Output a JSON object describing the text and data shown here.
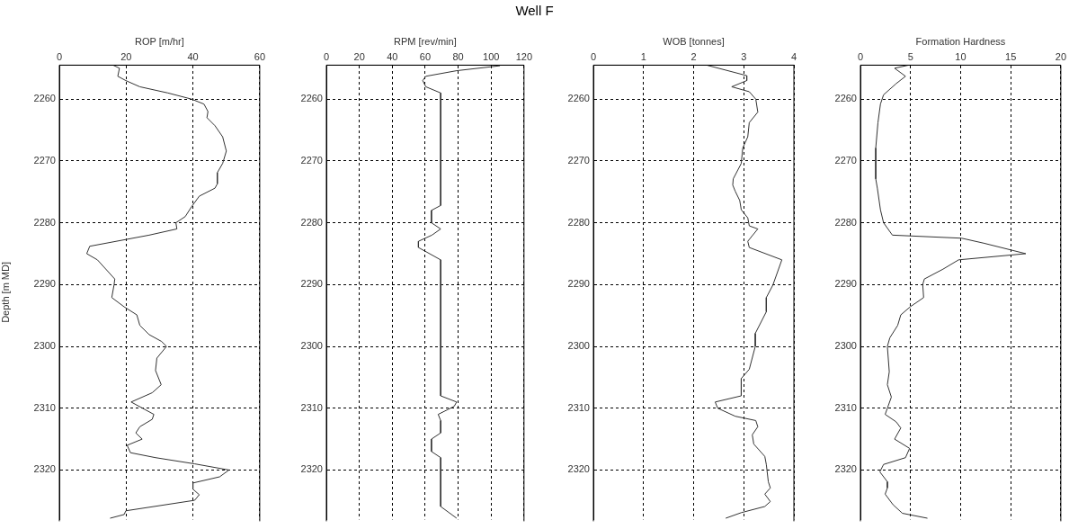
{
  "chart_data": [
    {
      "type": "line",
      "xlabel": "ROP [m/hr]",
      "ylabel": "Depth [m MD]",
      "xlim": [
        0,
        60
      ],
      "xticks": [
        0,
        20,
        40,
        60
      ],
      "ylim": [
        2328,
        2254.5
      ],
      "yticks": [
        2260,
        2270,
        2280,
        2290,
        2300,
        2310,
        2320
      ],
      "grid": true,
      "series": [
        {
          "color": "#333333",
          "x": [
            16.1,
            18,
            17.5,
            19.9,
            24.1,
            32.5,
            39.6,
            43.3,
            44.5,
            44.2,
            46.6,
            48.9,
            50,
            48.9,
            47.3,
            47.3,
            46.6,
            41.9,
            39.6,
            37.7,
            34.9,
            35.2,
            26.9,
            9.1,
            8.2,
            11.4,
            16.6,
            16.4,
            15.7,
            19.4,
            23.2,
            24.1,
            26.9,
            30.6,
            32.1,
            29.2,
            28.8,
            30.5,
            27.8,
            21.5,
            28.3,
            27.8,
            24.1,
            22.9,
            24.8,
            20.3,
            21.3,
            28.8,
            40.5,
            50.8,
            48,
            40,
            40,
            41.9,
            40.5,
            19.9,
            19.4,
            15.2
          ],
          "values": [
            2254.5,
            2255,
            2256.3,
            2257,
            2258,
            2259,
            2260,
            2260.8,
            2262,
            2263,
            2264.3,
            2266.1,
            2268.4,
            2270.4,
            2271.9,
            2273.7,
            2274.4,
            2275.7,
            2277.4,
            2279,
            2280,
            2281,
            2282,
            2283.8,
            2285,
            2286,
            2289.1,
            2290,
            2292.1,
            2293.6,
            2294.9,
            2296.6,
            2298.1,
            2299.2,
            2300,
            2301.9,
            2303.9,
            2306.2,
            2307.5,
            2309,
            2311,
            2311.8,
            2313,
            2314,
            2315,
            2316,
            2317.2,
            2318,
            2319,
            2320,
            2321.1,
            2322.1,
            2323.1,
            2324,
            2324.9,
            2326.6,
            2327.2,
            2327.8
          ]
        }
      ]
    },
    {
      "type": "line",
      "title": "Well F",
      "xlabel": "RPM [rev/min]",
      "xlim": [
        0,
        120
      ],
      "xticks": [
        0,
        20,
        40,
        60,
        80,
        100,
        120
      ],
      "ylim": [
        2328,
        2254.5
      ],
      "yticks": [
        2260,
        2270,
        2280,
        2290,
        2300,
        2310,
        2320
      ],
      "grid": true,
      "series": [
        {
          "color": "#333333",
          "x": [
            105.4,
            79.1,
            60.4,
            58.5,
            60.4,
            69.4,
            69.4,
            63.8,
            63.8,
            69.4,
            64.1,
            55.9,
            55.9,
            69.4,
            69.4,
            79.1,
            77.6,
            67.9,
            69.4,
            69.4,
            63.8,
            63.8,
            69.4,
            69.4,
            79.1
          ],
          "values": [
            2254.6,
            2255.4,
            2256.3,
            2257,
            2258,
            2259,
            2277.2,
            2278,
            2280,
            2281,
            2282,
            2283,
            2284,
            2286,
            2308,
            2309,
            2309.7,
            2311,
            2312,
            2314,
            2315,
            2317,
            2318,
            2325.9,
            2327.8
          ]
        }
      ]
    },
    {
      "type": "line",
      "xlabel": "WOB [tonnes]",
      "xlim": [
        0,
        4
      ],
      "xticks": [
        0,
        1,
        2,
        3,
        4
      ],
      "ylim": [
        2328,
        2254.5
      ],
      "yticks": [
        2260,
        2270,
        2280,
        2290,
        2300,
        2310,
        2320
      ],
      "grid": true,
      "series": [
        {
          "color": "#333333",
          "x": [
            2.26,
            3.06,
            3.06,
            2.76,
            3.11,
            3.24,
            3.28,
            3.11,
            3.08,
            2.98,
            2.95,
            2.79,
            2.78,
            2.83,
            2.92,
            2.95,
            3.08,
            3.11,
            3.28,
            3.08,
            3.11,
            3.76,
            3.58,
            3.45,
            3.45,
            3.23,
            3.23,
            3.11,
            2.95,
            2.95,
            2.43,
            2.48,
            2.83,
            3.24,
            3.28,
            3.17,
            3.2,
            3.42,
            3.45,
            3.49,
            3.53,
            3.42,
            3.53,
            3.42,
            2.95,
            2.64
          ],
          "values": [
            2254.5,
            2256.2,
            2257,
            2258,
            2258.8,
            2260,
            2262.1,
            2263.8,
            2266.1,
            2267.9,
            2270.4,
            2272.9,
            2273.9,
            2274.9,
            2276.4,
            2277.9,
            2279.2,
            2280.5,
            2281,
            2283,
            2284,
            2286,
            2290.1,
            2292.1,
            2294.4,
            2297.9,
            2300,
            2303.7,
            2305.2,
            2308,
            2309,
            2310,
            2311.3,
            2312,
            2313,
            2314.3,
            2315.8,
            2317.8,
            2319.1,
            2321.9,
            2322.9,
            2323.9,
            2325.1,
            2325.9,
            2326.9,
            2327.8
          ]
        }
      ]
    },
    {
      "type": "line",
      "xlabel": "Formation Hardness",
      "xlim": [
        0,
        20
      ],
      "xticks": [
        0,
        5,
        10,
        15,
        20
      ],
      "ylim": [
        2328,
        2254.5
      ],
      "yticks": [
        2260,
        2270,
        2280,
        2290,
        2300,
        2310,
        2320
      ],
      "grid": true,
      "series": [
        {
          "color": "#333333",
          "x": [
            4.81,
            3.41,
            4.5,
            3.56,
            2.31,
            2,
            1.75,
            1.53,
            1.53,
            1.69,
            2,
            2.31,
            3.19,
            10.1,
            12.3,
            16.5,
            9.8,
            8.25,
            6.38,
            6.22,
            6.31,
            4.97,
            4.03,
            3.72,
            2.94,
            2.69,
            2.88,
            2.69,
            3.09,
            2.47,
            3.56,
            4.03,
            3.41,
            4.91,
            4.5,
            2.31,
            1.94,
            2.69,
            2.69,
            2.47,
            3.25,
            4.19,
            6.69
          ],
          "values": [
            2254.5,
            2255,
            2256.3,
            2257.5,
            2259.3,
            2260.8,
            2263.8,
            2267.9,
            2272.9,
            2274.4,
            2277.9,
            2280,
            2282,
            2282.5,
            2283.3,
            2285,
            2286,
            2287.5,
            2289.1,
            2290,
            2292.1,
            2293.6,
            2294.9,
            2296.6,
            2298.6,
            2300,
            2304.1,
            2306.2,
            2308.2,
            2311,
            2312.2,
            2313.2,
            2315,
            2316.5,
            2318,
            2319.1,
            2320.3,
            2321.9,
            2322.9,
            2323.9,
            2325.6,
            2327,
            2327.8
          ]
        }
      ]
    }
  ]
}
